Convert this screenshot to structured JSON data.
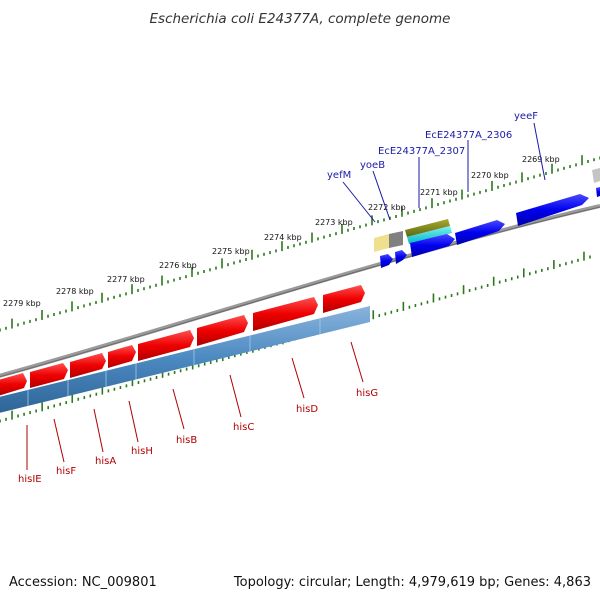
{
  "title": "Escherichia coli E24377A, complete genome",
  "accession": "Accession: NC_009801",
  "summary": "Topology: circular; Length: 4,979,619 bp; Genes: 4,863",
  "colors": {
    "tick": "#2a7a1a",
    "forward_gene": "#0000ee",
    "reverse_gene": "#ee0000",
    "reverse_cds": "#4a88c0",
    "backbone": "#888888",
    "forward_label": "#1a1aa8",
    "reverse_label": "#b00000"
  },
  "scale_labels": [
    "2279 kbp",
    "2278 kbp",
    "2277 kbp",
    "2276 kbp",
    "2275 kbp",
    "2274 kbp",
    "2273 kbp",
    "2272 kbp",
    "2271 kbp",
    "2270 kbp",
    "2269 kbp"
  ],
  "forward_genes": [
    {
      "name": "yeeF"
    },
    {
      "name": "EcE24377A_2306"
    },
    {
      "name": "EcE24377A_2307"
    },
    {
      "name": "yoeB"
    },
    {
      "name": "yefM"
    }
  ],
  "reverse_genes": [
    {
      "name": "hisIE"
    },
    {
      "name": "hisF"
    },
    {
      "name": "hisA"
    },
    {
      "name": "hisH"
    },
    {
      "name": "hisB"
    },
    {
      "name": "hisC"
    },
    {
      "name": "hisD"
    },
    {
      "name": "hisG"
    }
  ]
}
